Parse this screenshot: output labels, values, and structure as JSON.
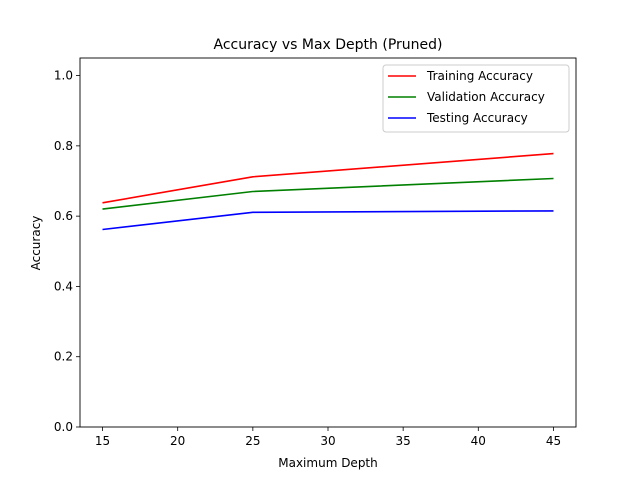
{
  "chart_data": {
    "type": "line",
    "title": "Accuracy vs Max Depth (Pruned)",
    "xlabel": "Maximum Depth",
    "ylabel": "Accuracy",
    "x": [
      15,
      25,
      45
    ],
    "xlim": [
      13.5,
      46.5
    ],
    "ylim": [
      0.0,
      1.05
    ],
    "xticks": [
      15,
      20,
      25,
      30,
      35,
      40,
      45
    ],
    "yticks": [
      0.0,
      0.2,
      0.4,
      0.6,
      0.8,
      1.0
    ],
    "xtick_labels": [
      "15",
      "20",
      "25",
      "30",
      "35",
      "40",
      "45"
    ],
    "ytick_labels": [
      "0.0",
      "0.2",
      "0.4",
      "0.6",
      "0.8",
      "1.0"
    ],
    "grid": false,
    "legend_position": "top-right",
    "series": [
      {
        "name": "Training Accuracy",
        "color": "#ff0000",
        "values": [
          0.638,
          0.712,
          0.778
        ]
      },
      {
        "name": "Validation Accuracy",
        "color": "#008000",
        "values": [
          0.62,
          0.67,
          0.707
        ]
      },
      {
        "name": "Testing Accuracy",
        "color": "#0000ff",
        "values": [
          0.562,
          0.611,
          0.615
        ]
      }
    ]
  }
}
